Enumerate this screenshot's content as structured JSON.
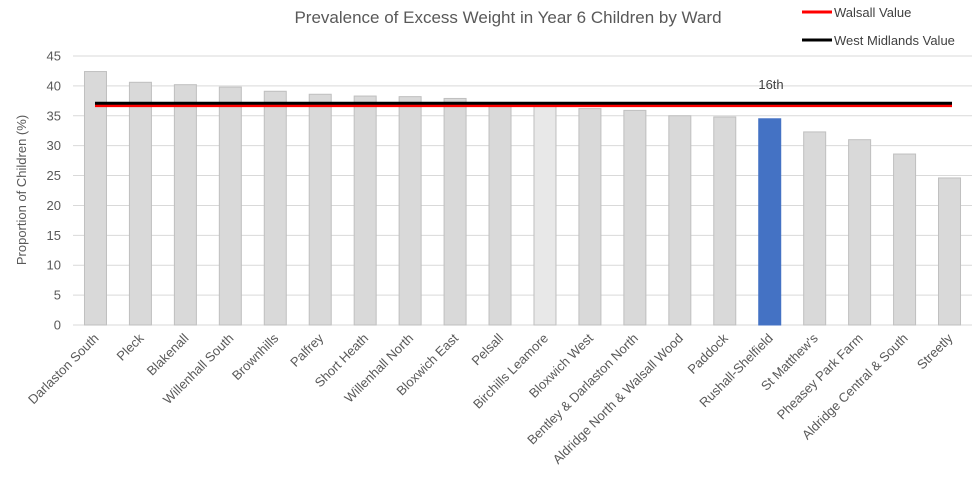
{
  "chart_data": {
    "type": "bar",
    "title": "Prevalence of Excess Weight in Year 6 Children by Ward",
    "ylabel": "Proportion of Children (%)",
    "xlabel": "",
    "ylim": [
      0,
      45
    ],
    "yticks": [
      0,
      5,
      10,
      15,
      20,
      25,
      30,
      35,
      40,
      45
    ],
    "grid": true,
    "categories": [
      "Darlaston South",
      "Pleck",
      "Blakenall",
      "Willenhall South",
      "Brownhills",
      "Palfrey",
      "Short Heath",
      "Willenhall North",
      "Bloxwich East",
      "Pelsall",
      "Birchills Leamore",
      "Bloxwich West",
      "Bentley & Darlaston North",
      "Aldridge North & Walsall Wood",
      "Paddock",
      "Rushall-Shelfield",
      "St Matthew's",
      "Pheasey Park Farm",
      "Aldridge Central & South",
      "Streetly"
    ],
    "values": [
      42.4,
      40.6,
      40.2,
      39.8,
      39.1,
      38.6,
      38.3,
      38.2,
      37.9,
      37.0,
      36.9,
      36.2,
      35.9,
      35.0,
      34.8,
      34.5,
      32.3,
      31.0,
      28.6,
      24.6
    ],
    "reference_lines": [
      {
        "name": "Walsall Value",
        "value": 36.7,
        "color": "#ff0000"
      },
      {
        "name": "West Midlands Value",
        "value": 37.1,
        "color": "#000000"
      }
    ],
    "highlight": {
      "category": "Rushall-Shelfield",
      "color": "#4472c4"
    },
    "emphasis": {
      "category": "Birchills Leamore",
      "color": "#e8e8e8"
    },
    "annotation": "16th",
    "legend_position": "top-right",
    "colors": {
      "bar": "#d9d9d9",
      "bar_edge": "#bfbfbf",
      "grid": "#d9d9d9"
    }
  }
}
